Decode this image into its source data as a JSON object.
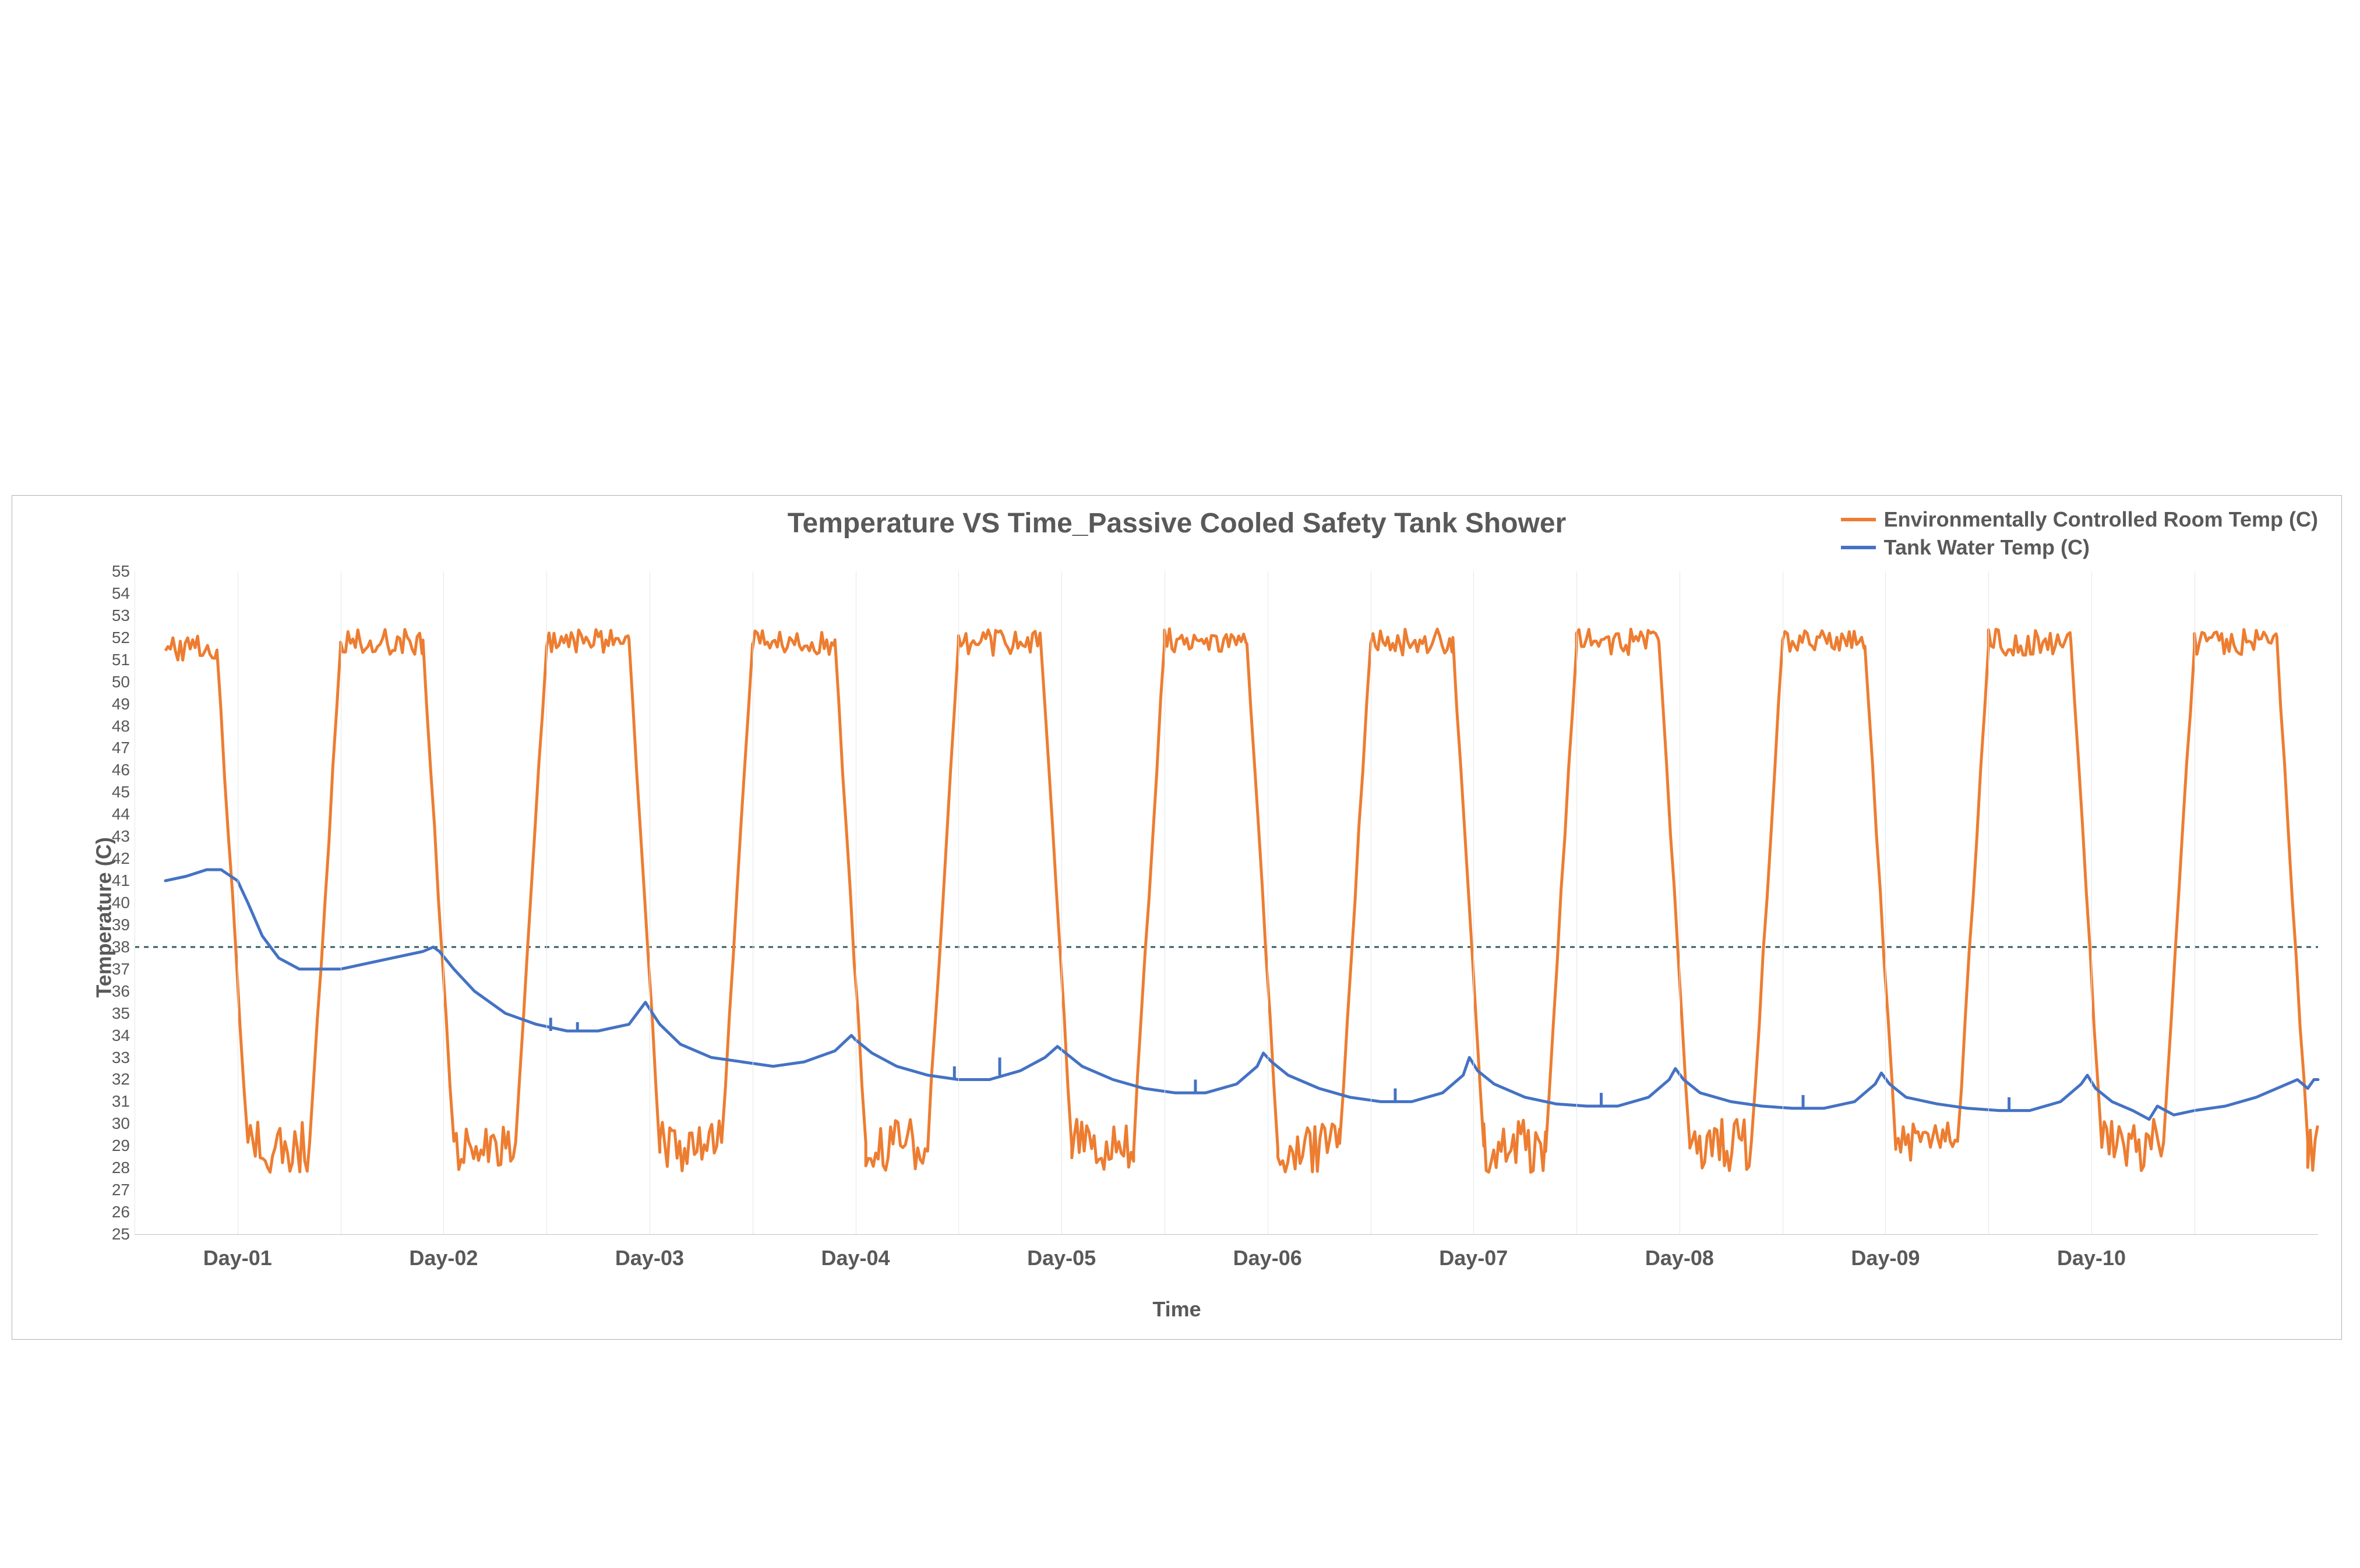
{
  "chart": {
    "type": "line",
    "title": "Temperature VS Time_Passive Cooled Safety Tank Shower",
    "title_fontsize": 48,
    "title_color": "#595959",
    "x_axis_label": "Time",
    "y_axis_label": "Temperature (C)",
    "axis_label_fontsize": 36,
    "axis_label_color": "#595959",
    "background_color": "#ffffff",
    "border_color": "#b0b0b0",
    "grid_color": "#e6e6e6",
    "ylim": [
      25,
      55
    ],
    "ytick_step": 1,
    "yticks": [
      25,
      26,
      27,
      28,
      29,
      30,
      31,
      32,
      33,
      34,
      35,
      36,
      37,
      38,
      39,
      40,
      41,
      42,
      43,
      44,
      45,
      46,
      47,
      48,
      49,
      50,
      51,
      52,
      53,
      54,
      55
    ],
    "x_categories": [
      "Day-01",
      "Day-02",
      "Day-03",
      "Day-04",
      "Day-05",
      "Day-06",
      "Day-07",
      "Day-08",
      "Day-09",
      "Day-10"
    ],
    "x_range_days": 10.6,
    "x_start_offset_days": 0.15,
    "x_tick_positions_days": [
      0.5,
      1.5,
      2.5,
      3.5,
      4.5,
      5.5,
      6.5,
      7.5,
      8.5,
      9.5
    ],
    "reference_line": {
      "value": 38,
      "color": "#2f5f5f",
      "dash": "8,8",
      "width": 3
    },
    "legend": {
      "position": "top-right",
      "fontsize": 36,
      "items": [
        {
          "label": "Environmentally Controlled Room Temp (C)",
          "color": "#ed7d31"
        },
        {
          "label": "Tank Water Temp (C)",
          "color": "#4472c4"
        }
      ]
    },
    "series": [
      {
        "name": "Environmentally Controlled Room Temp (C)",
        "color": "#ed7d31",
        "line_width": 5,
        "noise_high_amp": 0.6,
        "noise_low_amp": 1.2,
        "cycles": [
          {
            "start": 0.15,
            "high_until": 0.4,
            "low_at": 0.55,
            "low_until": 0.85,
            "high_at": 1.0,
            "high_value": 51.5,
            "low_value": 29.0
          },
          {
            "start": 1.0,
            "high_until": 1.4,
            "low_at": 1.55,
            "low_until": 1.85,
            "high_at": 2.0,
            "high_value": 51.8,
            "low_value": 29.0
          },
          {
            "start": 2.0,
            "high_until": 2.4,
            "low_at": 2.55,
            "low_until": 2.85,
            "high_at": 3.0,
            "high_value": 51.8,
            "low_value": 29.0
          },
          {
            "start": 3.0,
            "high_until": 3.4,
            "low_at": 3.55,
            "low_until": 3.85,
            "high_at": 4.0,
            "high_value": 51.8,
            "low_value": 29.0
          },
          {
            "start": 4.0,
            "high_until": 4.4,
            "low_at": 4.55,
            "low_until": 4.85,
            "high_at": 5.0,
            "high_value": 51.8,
            "low_value": 29.0
          },
          {
            "start": 5.0,
            "high_until": 5.4,
            "low_at": 5.55,
            "low_until": 5.85,
            "high_at": 6.0,
            "high_value": 51.8,
            "low_value": 29.0
          },
          {
            "start": 6.0,
            "high_until": 6.4,
            "low_at": 6.55,
            "low_until": 6.85,
            "high_at": 7.0,
            "high_value": 51.8,
            "low_value": 29.0
          },
          {
            "start": 7.0,
            "high_until": 7.4,
            "low_at": 7.55,
            "low_until": 7.85,
            "high_at": 8.0,
            "high_value": 51.8,
            "low_value": 29.0
          },
          {
            "start": 8.0,
            "high_until": 8.4,
            "low_at": 8.55,
            "low_until": 8.85,
            "high_at": 9.0,
            "high_value": 51.8,
            "low_value": 29.0
          },
          {
            "start": 9.0,
            "high_until": 9.4,
            "low_at": 9.55,
            "low_until": 9.85,
            "high_at": 10.0,
            "high_value": 51.8,
            "low_value": 29.0
          },
          {
            "start": 10.0,
            "high_until": 10.4,
            "low_at": 10.55,
            "low_until": 10.6,
            "high_at": 10.6,
            "high_value": 51.8,
            "low_value": 29.0
          }
        ]
      },
      {
        "name": "Tank Water Temp (C)",
        "color": "#4472c4",
        "line_width": 5,
        "points": [
          [
            0.15,
            41.0
          ],
          [
            0.25,
            41.2
          ],
          [
            0.35,
            41.5
          ],
          [
            0.42,
            41.5
          ],
          [
            0.5,
            41.0
          ],
          [
            0.55,
            40.0
          ],
          [
            0.62,
            38.5
          ],
          [
            0.7,
            37.5
          ],
          [
            0.8,
            37.0
          ],
          [
            0.9,
            37.0
          ],
          [
            1.0,
            37.0
          ],
          [
            1.1,
            37.2
          ],
          [
            1.25,
            37.5
          ],
          [
            1.4,
            37.8
          ],
          [
            1.45,
            38.0
          ],
          [
            1.48,
            37.8
          ],
          [
            1.55,
            37.0
          ],
          [
            1.65,
            36.0
          ],
          [
            1.8,
            35.0
          ],
          [
            1.95,
            34.5
          ],
          [
            2.1,
            34.2
          ],
          [
            2.25,
            34.2
          ],
          [
            2.4,
            34.5
          ],
          [
            2.48,
            35.5
          ],
          [
            2.5,
            35.2
          ],
          [
            2.55,
            34.5
          ],
          [
            2.65,
            33.6
          ],
          [
            2.8,
            33.0
          ],
          [
            2.95,
            32.8
          ],
          [
            3.1,
            32.6
          ],
          [
            3.25,
            32.8
          ],
          [
            3.4,
            33.3
          ],
          [
            3.48,
            34.0
          ],
          [
            3.5,
            33.8
          ],
          [
            3.58,
            33.2
          ],
          [
            3.7,
            32.6
          ],
          [
            3.85,
            32.2
          ],
          [
            4.0,
            32.0
          ],
          [
            4.15,
            32.0
          ],
          [
            4.3,
            32.4
          ],
          [
            4.42,
            33.0
          ],
          [
            4.48,
            33.5
          ],
          [
            4.52,
            33.2
          ],
          [
            4.6,
            32.6
          ],
          [
            4.75,
            32.0
          ],
          [
            4.9,
            31.6
          ],
          [
            5.05,
            31.4
          ],
          [
            5.2,
            31.4
          ],
          [
            5.35,
            31.8
          ],
          [
            5.45,
            32.6
          ],
          [
            5.48,
            33.2
          ],
          [
            5.52,
            32.8
          ],
          [
            5.6,
            32.2
          ],
          [
            5.75,
            31.6
          ],
          [
            5.9,
            31.2
          ],
          [
            6.05,
            31.0
          ],
          [
            6.2,
            31.0
          ],
          [
            6.35,
            31.4
          ],
          [
            6.45,
            32.2
          ],
          [
            6.48,
            33.0
          ],
          [
            6.52,
            32.4
          ],
          [
            6.6,
            31.8
          ],
          [
            6.75,
            31.2
          ],
          [
            6.9,
            30.9
          ],
          [
            7.05,
            30.8
          ],
          [
            7.2,
            30.8
          ],
          [
            7.35,
            31.2
          ],
          [
            7.45,
            32.0
          ],
          [
            7.48,
            32.5
          ],
          [
            7.52,
            32.0
          ],
          [
            7.6,
            31.4
          ],
          [
            7.75,
            31.0
          ],
          [
            7.9,
            30.8
          ],
          [
            8.05,
            30.7
          ],
          [
            8.2,
            30.7
          ],
          [
            8.35,
            31.0
          ],
          [
            8.45,
            31.8
          ],
          [
            8.48,
            32.3
          ],
          [
            8.52,
            31.8
          ],
          [
            8.6,
            31.2
          ],
          [
            8.75,
            30.9
          ],
          [
            8.9,
            30.7
          ],
          [
            9.05,
            30.6
          ],
          [
            9.2,
            30.6
          ],
          [
            9.35,
            31.0
          ],
          [
            9.45,
            31.8
          ],
          [
            9.48,
            32.2
          ],
          [
            9.52,
            31.6
          ],
          [
            9.6,
            31.0
          ],
          [
            9.7,
            30.6
          ],
          [
            9.78,
            30.2
          ],
          [
            9.82,
            30.8
          ],
          [
            9.9,
            30.4
          ],
          [
            10.0,
            30.6
          ],
          [
            10.15,
            30.8
          ],
          [
            10.3,
            31.2
          ],
          [
            10.45,
            31.8
          ],
          [
            10.5,
            32.0
          ],
          [
            10.55,
            31.6
          ],
          [
            10.58,
            32.0
          ],
          [
            10.6,
            32.0
          ]
        ],
        "spikes": [
          [
            2.02,
            34.2,
            34.8
          ],
          [
            2.15,
            34.2,
            34.6
          ],
          [
            3.98,
            32.0,
            32.6
          ],
          [
            4.2,
            32.2,
            33.0
          ],
          [
            5.15,
            31.4,
            32.0
          ],
          [
            6.12,
            31.0,
            31.6
          ],
          [
            7.12,
            30.8,
            31.4
          ],
          [
            8.1,
            30.7,
            31.3
          ],
          [
            9.1,
            30.6,
            31.2
          ]
        ]
      }
    ]
  }
}
